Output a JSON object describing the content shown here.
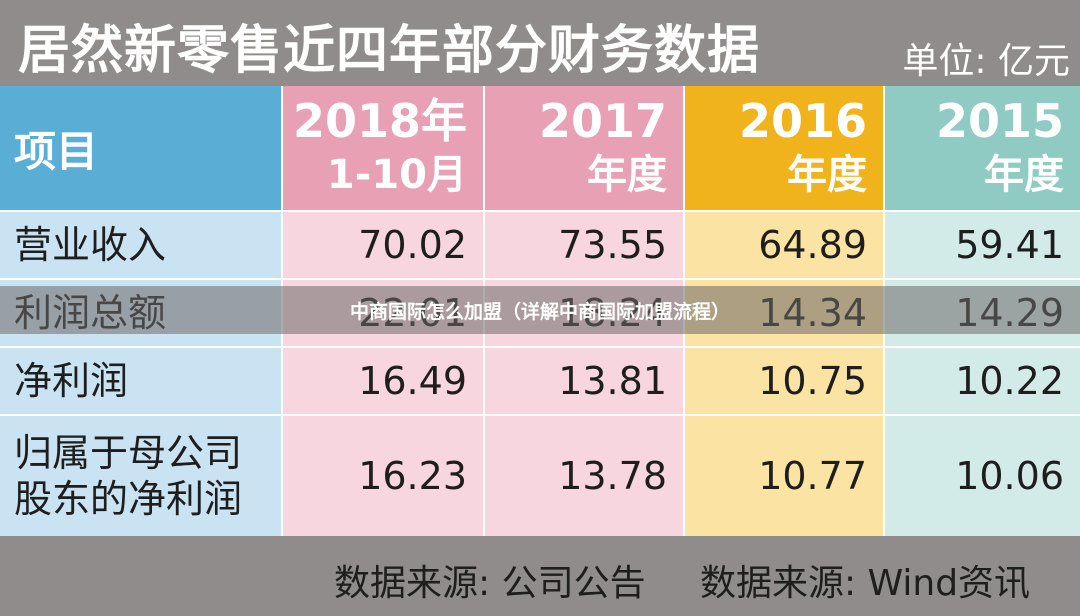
{
  "title": "居然新零售近四年部分财务数据",
  "unit": "单位: 亿元",
  "colors": {
    "label_col": "#5aaed6",
    "label_col_body": "#c9e3f2",
    "col_2018": "#e8a0b4",
    "col_2018_body": "#f7d6df",
    "col_2017": "#e8a0b4",
    "col_2017_body": "#f7d6df",
    "col_2016": "#f1b31c",
    "col_2016_body": "#fbe3a3",
    "col_2015": "#8fcac3",
    "col_2015_body": "#d3ebe8"
  },
  "chart_data": {
    "type": "table",
    "header": {
      "item": "项目",
      "columns": [
        {
          "line1": "2018年",
          "line2": "1-10月"
        },
        {
          "line1": "2017",
          "line2": "年度"
        },
        {
          "line1": "2016",
          "line2": "年度"
        },
        {
          "line1": "2015",
          "line2": "年度"
        }
      ]
    },
    "rows": [
      {
        "label_line1": "营业收入",
        "label_line2": "",
        "values": [
          "70.02",
          "73.55",
          "64.89",
          "59.41"
        ]
      },
      {
        "label_line1": "利润总额",
        "label_line2": "",
        "values": [
          "22.01",
          "18.24",
          "14.34",
          "14.29"
        ]
      },
      {
        "label_line1": "净利润",
        "label_line2": "",
        "values": [
          "16.49",
          "13.81",
          "10.75",
          "10.22"
        ]
      },
      {
        "label_line1": "归属于母公司",
        "label_line2": "股东的净利润",
        "values": [
          "16.23",
          "13.78",
          "10.77",
          "10.06"
        ]
      }
    ]
  },
  "footer": {
    "source_1": "数据来源: 公司公告",
    "source_2": "数据来源: Wind资讯"
  },
  "overlay_caption": "中商国际怎么加盟（详解中商国际加盟流程）"
}
